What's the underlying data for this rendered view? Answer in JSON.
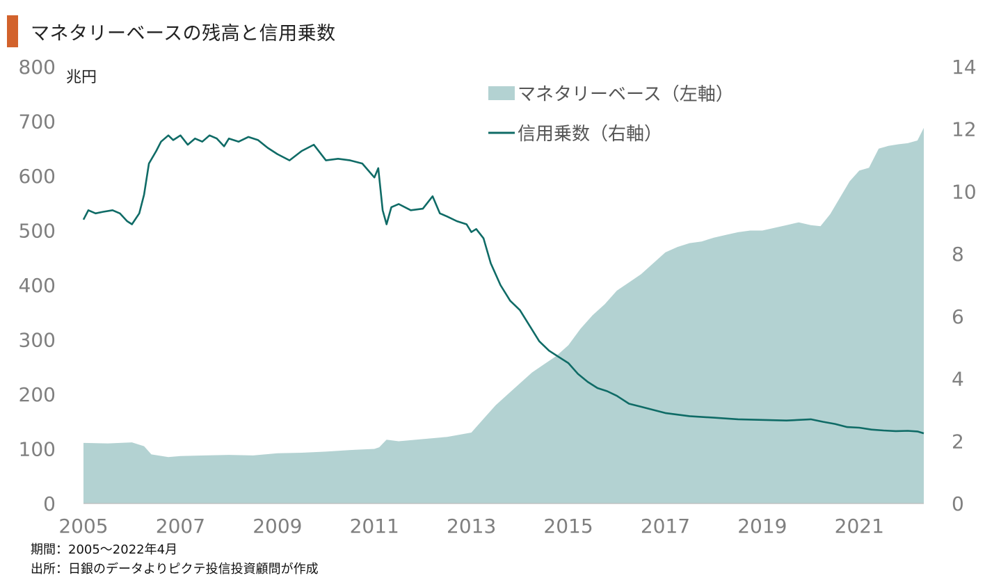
{
  "header": {
    "title": "マネタリーベースの残高と信用乗数",
    "accent_color": "#d2622c"
  },
  "footnotes": {
    "period": "期間：2005～2022年4月",
    "source": "出所：日銀のデータよりピクテ投信投資顧問が作成"
  },
  "chart_data": {
    "type": "area+line",
    "title": "マネタリーベースの残高と信用乗数",
    "left_axis": {
      "unit": "兆円",
      "ticks": [
        0,
        100,
        200,
        300,
        400,
        500,
        600,
        700,
        800
      ],
      "ylim": [
        0,
        800
      ]
    },
    "right_axis": {
      "ticks": [
        0,
        2,
        4,
        6,
        8,
        10,
        12,
        14
      ],
      "ylim": [
        0,
        14
      ]
    },
    "x_axis": {
      "ticks": [
        "2005",
        "2007",
        "2009",
        "2011",
        "2013",
        "2015",
        "2017",
        "2019",
        "2021"
      ],
      "xlim": [
        2005.0,
        2022.33
      ]
    },
    "grid": false,
    "legend": {
      "position": "top-right",
      "entries": [
        {
          "label": "マネタリーベース（左軸）",
          "kind": "area"
        },
        {
          "label": "信用乗数（右軸）",
          "kind": "line"
        }
      ]
    },
    "colors": {
      "area": "#b3d2d2",
      "line": "#0f6b66",
      "axis": "#7f7f7f"
    },
    "series": [
      {
        "name": "マネタリーベース（左軸）",
        "axis": "left",
        "kind": "area",
        "x": [
          2005.0,
          2005.5,
          2006.0,
          2006.25,
          2006.4,
          2006.75,
          2007.0,
          2007.5,
          2008.0,
          2008.5,
          2009.0,
          2009.5,
          2010.0,
          2010.5,
          2011.0,
          2011.1,
          2011.25,
          2011.5,
          2012.0,
          2012.5,
          2013.0,
          2013.25,
          2013.5,
          2013.75,
          2014.0,
          2014.25,
          2014.5,
          2014.75,
          2015.0,
          2015.25,
          2015.5,
          2015.75,
          2016.0,
          2016.25,
          2016.5,
          2016.75,
          2017.0,
          2017.25,
          2017.5,
          2017.75,
          2018.0,
          2018.25,
          2018.5,
          2018.75,
          2019.0,
          2019.25,
          2019.5,
          2019.75,
          2020.0,
          2020.2,
          2020.4,
          2020.6,
          2020.8,
          2021.0,
          2021.2,
          2021.4,
          2021.6,
          2021.8,
          2022.0,
          2022.2,
          2022.33
        ],
        "values": [
          111,
          110,
          112,
          105,
          90,
          85,
          87,
          88,
          89,
          88,
          92,
          93,
          95,
          98,
          100,
          103,
          117,
          114,
          118,
          122,
          130,
          155,
          180,
          200,
          220,
          240,
          255,
          270,
          290,
          320,
          345,
          365,
          390,
          405,
          420,
          440,
          460,
          470,
          477,
          480,
          487,
          492,
          497,
          500,
          500,
          505,
          510,
          515,
          510,
          508,
          530,
          560,
          590,
          610,
          615,
          650,
          655,
          658,
          660,
          665,
          688
        ]
      },
      {
        "name": "信用乗数（右軸）",
        "axis": "right",
        "kind": "line",
        "x": [
          2005.0,
          2005.1,
          2005.25,
          2005.4,
          2005.6,
          2005.75,
          2005.9,
          2006.0,
          2006.15,
          2006.25,
          2006.35,
          2006.5,
          2006.6,
          2006.75,
          2006.85,
          2007.0,
          2007.15,
          2007.3,
          2007.45,
          2007.6,
          2007.75,
          2007.9,
          2008.0,
          2008.2,
          2008.4,
          2008.6,
          2008.8,
          2009.0,
          2009.25,
          2009.5,
          2009.75,
          2010.0,
          2010.25,
          2010.5,
          2010.75,
          2011.0,
          2011.08,
          2011.17,
          2011.25,
          2011.35,
          2011.5,
          2011.75,
          2012.0,
          2012.2,
          2012.35,
          2012.5,
          2012.7,
          2012.9,
          2013.0,
          2013.1,
          2013.25,
          2013.4,
          2013.6,
          2013.8,
          2014.0,
          2014.2,
          2014.4,
          2014.6,
          2014.8,
          2015.0,
          2015.2,
          2015.4,
          2015.6,
          2015.8,
          2016.0,
          2016.25,
          2016.5,
          2016.75,
          2017.0,
          2017.5,
          2018.0,
          2018.5,
          2019.0,
          2019.5,
          2020.0,
          2020.25,
          2020.5,
          2020.75,
          2021.0,
          2021.25,
          2021.5,
          2021.75,
          2022.0,
          2022.2,
          2022.33
        ],
        "values": [
          9.1,
          9.4,
          9.3,
          9.35,
          9.4,
          9.3,
          9.05,
          8.95,
          9.3,
          9.9,
          10.9,
          11.3,
          11.6,
          11.8,
          11.65,
          11.8,
          11.5,
          11.7,
          11.6,
          11.8,
          11.7,
          11.45,
          11.7,
          11.6,
          11.75,
          11.65,
          11.4,
          11.2,
          11.0,
          11.3,
          11.5,
          11.0,
          11.05,
          11.0,
          10.9,
          10.45,
          10.75,
          9.4,
          8.95,
          9.5,
          9.6,
          9.4,
          9.45,
          9.85,
          9.3,
          9.2,
          9.05,
          8.95,
          8.7,
          8.8,
          8.5,
          7.7,
          7.0,
          6.5,
          6.2,
          5.7,
          5.2,
          4.9,
          4.7,
          4.5,
          4.15,
          3.9,
          3.7,
          3.6,
          3.45,
          3.2,
          3.1,
          3.0,
          2.9,
          2.8,
          2.75,
          2.7,
          2.68,
          2.66,
          2.7,
          2.62,
          2.55,
          2.45,
          2.43,
          2.37,
          2.34,
          2.32,
          2.33,
          2.31,
          2.25
        ]
      }
    ]
  }
}
